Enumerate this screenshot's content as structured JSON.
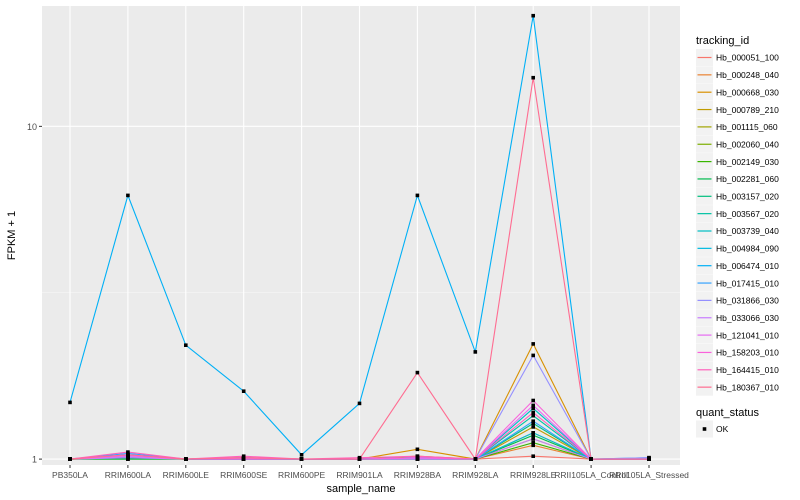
{
  "chart_data": {
    "type": "line",
    "xlabel": "sample_name",
    "ylabel": "FPKM + 1",
    "y_scale": "log10",
    "y_range": [
      0.96,
      23
    ],
    "y_ticks": [
      {
        "value": 1,
        "label": "1"
      },
      {
        "value": 10,
        "label": "10"
      }
    ],
    "grid": true,
    "legend_position": "right",
    "categories": [
      "PB350LA",
      "RRIM600LA",
      "RRIM600LE",
      "RRIM600SE",
      "RRIM600PE",
      "RRIM901LA",
      "RRIM928BA",
      "RRIM928LA",
      "RRIM928LE",
      "RRII105LA_Control",
      "RRII105LA_Stressed"
    ],
    "legend_title": "tracking_id",
    "series": [
      {
        "name": "Hb_000051_100",
        "color": "#F8766D",
        "values": [
          1,
          1.02,
          1,
          1,
          1,
          1,
          1.01,
          1,
          1.02,
          1,
          1
        ]
      },
      {
        "name": "Hb_000248_040",
        "color": "#EA8331",
        "values": [
          1,
          1.01,
          1,
          1,
          1,
          1,
          1,
          1,
          1.1,
          1,
          1
        ]
      },
      {
        "name": "Hb_000668_030",
        "color": "#D89000",
        "values": [
          1,
          1.01,
          1,
          1.01,
          1,
          1,
          1.07,
          1,
          2.22,
          1,
          1
        ]
      },
      {
        "name": "Hb_000789_210",
        "color": "#C09B00",
        "values": [
          1,
          1,
          1,
          1,
          1,
          1,
          1.02,
          1,
          1.25,
          1,
          1
        ]
      },
      {
        "name": "Hb_001115_060",
        "color": "#A3A500",
        "values": [
          1,
          1.01,
          1,
          1,
          1,
          1,
          1,
          1,
          1.15,
          1,
          1
        ]
      },
      {
        "name": "Hb_002060_040",
        "color": "#7CAE00",
        "values": [
          1,
          1,
          1,
          1,
          1,
          1,
          1.01,
          1,
          1.2,
          1,
          1
        ]
      },
      {
        "name": "Hb_002149_030",
        "color": "#39B600",
        "values": [
          1,
          1.01,
          1,
          1,
          1,
          1,
          1,
          1,
          1.12,
          1,
          1
        ]
      },
      {
        "name": "Hb_002281_060",
        "color": "#00BB4E",
        "values": [
          1,
          1,
          1,
          1,
          1,
          1,
          1.01,
          1,
          1.18,
          1,
          1
        ]
      },
      {
        "name": "Hb_003157_020",
        "color": "#00BF7D",
        "values": [
          1,
          1.01,
          1,
          1,
          1,
          1,
          1,
          1,
          1.28,
          1,
          1
        ]
      },
      {
        "name": "Hb_003567_020",
        "color": "#00C1A3",
        "values": [
          1,
          1.02,
          1,
          1.01,
          1,
          1,
          1.01,
          1,
          1.35,
          1,
          1
        ]
      },
      {
        "name": "Hb_003739_040",
        "color": "#00BFC4",
        "values": [
          1,
          1.01,
          1,
          1,
          1,
          1,
          1,
          1,
          1.42,
          1,
          1
        ]
      },
      {
        "name": "Hb_004984_090",
        "color": "#00BAE0",
        "values": [
          1,
          1.02,
          1,
          1,
          1,
          1,
          1.01,
          1,
          1.2,
          1,
          1
        ]
      },
      {
        "name": "Hb_006474_010",
        "color": "#00B0F6",
        "values": [
          1.48,
          6.2,
          2.2,
          1.6,
          1.03,
          1.47,
          6.2,
          2.1,
          21.5,
          1,
          1
        ]
      },
      {
        "name": "Hb_017415_010",
        "color": "#35A2FF",
        "values": [
          1,
          1.04,
          1,
          1,
          1,
          1,
          1.01,
          1,
          1.3,
          1,
          1.01
        ]
      },
      {
        "name": "Hb_031866_030",
        "color": "#9590FF",
        "values": [
          1,
          1.02,
          1,
          1,
          1,
          1,
          1,
          1,
          2.05,
          1,
          1.01
        ]
      },
      {
        "name": "Hb_033066_030",
        "color": "#C77CFF",
        "values": [
          1,
          1.01,
          1,
          1,
          1,
          1,
          1,
          1,
          1.15,
          1,
          1
        ]
      },
      {
        "name": "Hb_121041_010",
        "color": "#E76BF3",
        "values": [
          1,
          1.02,
          1,
          1.01,
          1,
          1,
          1.01,
          1,
          1.45,
          1,
          1
        ]
      },
      {
        "name": "Hb_158203_010",
        "color": "#FA62DB",
        "values": [
          1,
          1.03,
          1,
          1,
          1,
          1,
          1.01,
          1,
          1.5,
          1,
          1
        ]
      },
      {
        "name": "Hb_164415_010",
        "color": "#FF62BC",
        "values": [
          1,
          1.05,
          1,
          1.02,
          1,
          1.01,
          1.02,
          1,
          1.38,
          1,
          1
        ]
      },
      {
        "name": "Hb_180367_010",
        "color": "#FF6C91",
        "values": [
          1,
          1.03,
          1,
          1.01,
          1,
          1,
          1.82,
          1,
          14,
          1,
          1
        ]
      }
    ],
    "shape_legend": {
      "title": "quant_status",
      "items": [
        {
          "label": "OK"
        }
      ]
    }
  }
}
